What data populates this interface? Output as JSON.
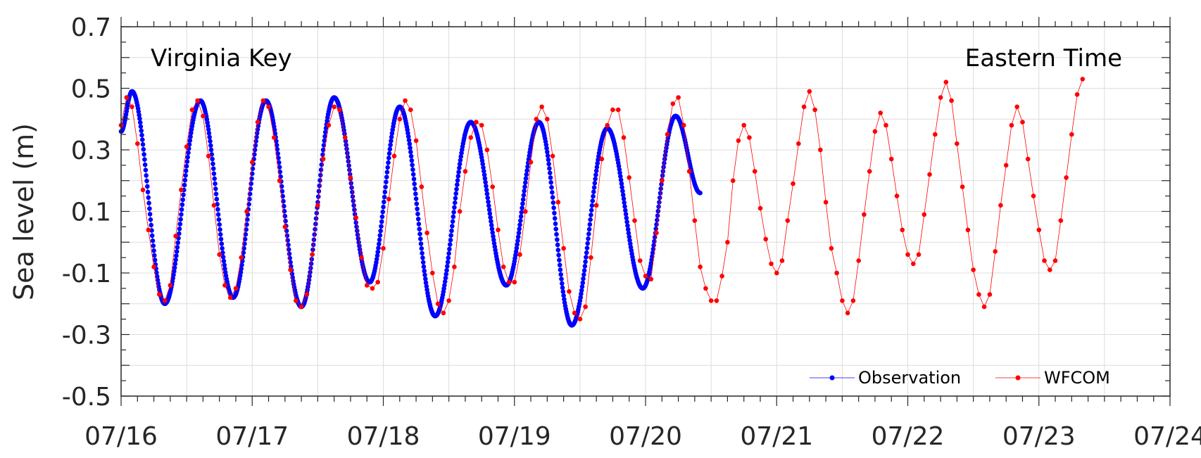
{
  "chart_data": {
    "type": "line",
    "ylabel": "Sea level (m)",
    "xlabel": "",
    "title": "",
    "annotations": {
      "left": "Virginia Key",
      "right": "Eastern Time"
    },
    "ylim": [
      -0.5,
      0.7
    ],
    "yticks": [
      -0.5,
      -0.3,
      -0.1,
      0.1,
      0.3,
      0.5,
      0.7
    ],
    "ytick_labels": [
      "-0.5",
      "-0.3",
      "-0.1",
      "0.1",
      "0.3",
      "0.5",
      "0.7"
    ],
    "xlim": [
      "07/16",
      "07/24"
    ],
    "xtick_labels": [
      "07/16",
      "07/17",
      "07/18",
      "07/19",
      "07/20",
      "07/21",
      "07/22",
      "07/23",
      "07/24"
    ],
    "grid": true,
    "legend_position": "bottom-right",
    "series": [
      {
        "name": "Observation",
        "color": "#0000ff",
        "marker": "dot",
        "x_start": "07/16 00:00",
        "x_end": "07/20 10:00",
        "step_minutes": 6,
        "extrema": [
          [
            "07/16 00:00",
            0.36
          ],
          [
            "07/16 02:00",
            0.49
          ],
          [
            "07/16 08:00",
            -0.2
          ],
          [
            "07/16 14:30",
            0.46
          ],
          [
            "07/16 20:30",
            -0.18
          ],
          [
            "07/17 02:30",
            0.46
          ],
          [
            "07/17 09:00",
            -0.21
          ],
          [
            "07/17 15:00",
            0.47
          ],
          [
            "07/17 21:30",
            -0.13
          ],
          [
            "07/18 03:00",
            0.44
          ],
          [
            "07/18 09:30",
            -0.24
          ],
          [
            "07/18 16:00",
            0.39
          ],
          [
            "07/18 22:30",
            -0.14
          ],
          [
            "07/19 04:30",
            0.39
          ],
          [
            "07/19 10:30",
            -0.27
          ],
          [
            "07/19 17:00",
            0.37
          ],
          [
            "07/19 23:30",
            -0.15
          ],
          [
            "07/20 05:30",
            0.41
          ],
          [
            "07/20 10:00",
            0.16
          ]
        ]
      },
      {
        "name": "WFCOM",
        "color": "#ff0000",
        "marker": "dot",
        "x_start": "07/16 00:00",
        "step_hours": 1,
        "values": [
          0.38,
          0.47,
          0.44,
          0.32,
          0.17,
          0.04,
          -0.08,
          -0.17,
          -0.19,
          -0.14,
          0.02,
          0.17,
          0.31,
          0.43,
          0.46,
          0.41,
          0.28,
          0.12,
          -0.04,
          -0.14,
          -0.18,
          -0.15,
          -0.05,
          0.1,
          0.26,
          0.39,
          0.46,
          0.44,
          0.34,
          0.2,
          0.05,
          -0.09,
          -0.19,
          -0.21,
          -0.17,
          -0.04,
          0.12,
          0.27,
          0.38,
          0.44,
          0.43,
          0.34,
          0.21,
          0.08,
          -0.05,
          -0.14,
          -0.15,
          -0.13,
          -0.02,
          0.14,
          0.28,
          0.4,
          0.46,
          0.43,
          0.33,
          0.18,
          0.03,
          -0.1,
          -0.2,
          -0.23,
          -0.19,
          -0.08,
          0.1,
          0.23,
          0.34,
          0.39,
          0.38,
          0.3,
          0.18,
          0.04,
          -0.08,
          -0.13,
          -0.13,
          -0.04,
          0.1,
          0.26,
          0.4,
          0.44,
          0.4,
          0.28,
          0.13,
          -0.02,
          -0.16,
          -0.23,
          -0.25,
          -0.21,
          -0.05,
          0.12,
          0.27,
          0.38,
          0.43,
          0.43,
          0.34,
          0.21,
          0.07,
          -0.06,
          -0.11,
          -0.12,
          0.03,
          0.2,
          0.35,
          0.45,
          0.47,
          0.38,
          0.23,
          0.07,
          -0.08,
          -0.15,
          -0.19,
          -0.19,
          -0.11,
          0.0,
          0.2,
          0.33,
          0.38,
          0.34,
          0.23,
          0.11,
          0.01,
          -0.07,
          -0.1,
          -0.06,
          0.07,
          0.19,
          0.32,
          0.44,
          0.49,
          0.43,
          0.3,
          0.13,
          -0.02,
          -0.1,
          -0.19,
          -0.23,
          -0.19,
          -0.06,
          0.09,
          0.23,
          0.36,
          0.42,
          0.38,
          0.27,
          0.15,
          0.04,
          -0.04,
          -0.07,
          -0.04,
          0.09,
          0.22,
          0.35,
          0.47,
          0.52,
          0.46,
          0.32,
          0.18,
          0.04,
          -0.09,
          -0.17,
          -0.21,
          -0.17,
          -0.03,
          0.12,
          0.25,
          0.38,
          0.44,
          0.39,
          0.27,
          0.15,
          0.04,
          -0.06,
          -0.09,
          -0.06,
          0.07,
          0.21,
          0.35,
          0.48,
          0.53
        ]
      }
    ]
  }
}
